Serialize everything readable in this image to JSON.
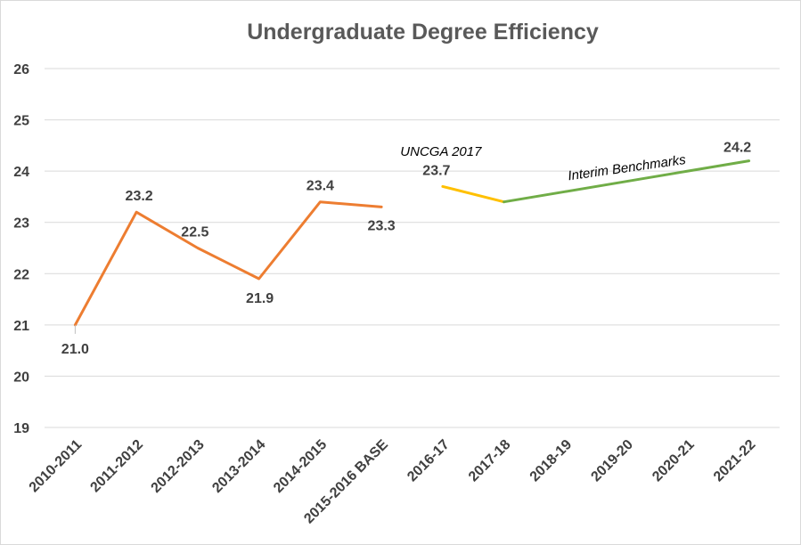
{
  "chart_data": {
    "type": "line",
    "title": "Undergraduate Degree Efficiency",
    "xlabel": "",
    "ylabel": "",
    "ylim": [
      19,
      26
    ],
    "yticks": [
      19,
      20,
      21,
      22,
      23,
      24,
      25,
      26
    ],
    "grid": true,
    "categories": [
      "2010-2011",
      "2011-2012",
      "2012-2013",
      "2013-2014",
      "2014-2015",
      "2015-2016 BASE",
      "2016-17",
      "2017-18",
      "2018-19",
      "2019-20",
      "2020-21",
      "2021-22"
    ],
    "series": [
      {
        "color": "#ed7d31",
        "points": [
          {
            "x": "2010-2011",
            "y": 21.0,
            "label": "21.0"
          },
          {
            "x": "2011-2012",
            "y": 23.2,
            "label": "23.2"
          },
          {
            "x": "2012-2013",
            "y": 22.5,
            "label": "22.5"
          },
          {
            "x": "2013-2014",
            "y": 21.9,
            "label": "21.9"
          },
          {
            "x": "2014-2015",
            "y": 23.4,
            "label": "23.4"
          },
          {
            "x": "2015-2016 BASE",
            "y": 23.3,
            "label": "23.3"
          }
        ]
      },
      {
        "color": "#ffc000",
        "points": [
          {
            "x": "2016-17",
            "y": 23.7,
            "label": "23.7"
          },
          {
            "x": "2017-18",
            "y": 23.4
          }
        ]
      },
      {
        "color": "#70ad47",
        "points": [
          {
            "x": "2017-18",
            "y": 23.4
          },
          {
            "x": "2018-19",
            "y": 23.6
          },
          {
            "x": "2019-20",
            "y": 23.8
          },
          {
            "x": "2020-21",
            "y": 24.0
          },
          {
            "x": "2021-22",
            "y": 24.2,
            "label": "24.2"
          }
        ]
      }
    ],
    "annotations": [
      {
        "text": "UNCGA 2017",
        "x": "2016-17",
        "y": 24.35
      },
      {
        "text": "Interim Benchmarks",
        "x": "2019-20",
        "y": 24.0
      }
    ]
  }
}
